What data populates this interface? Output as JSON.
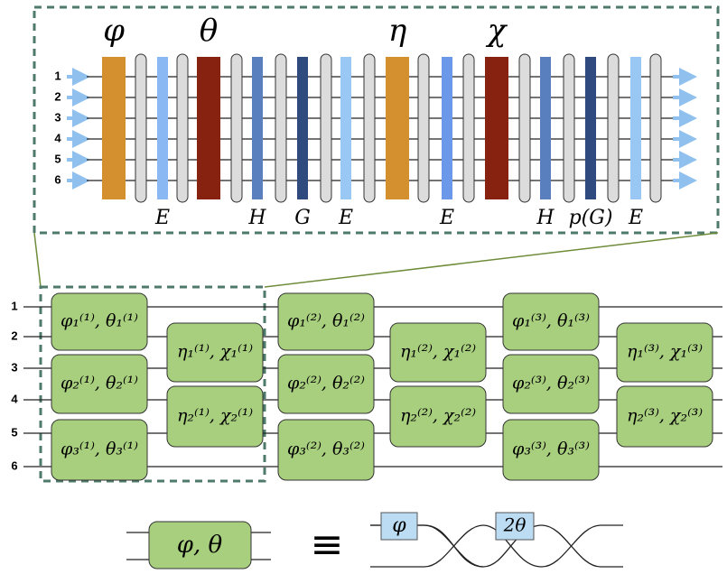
{
  "top_panel": {
    "wire_labels": [
      "1",
      "2",
      "3",
      "4",
      "5",
      "6"
    ],
    "gate_labels": [
      "φ",
      "θ",
      "η",
      "χ"
    ],
    "bottom_labels": [
      "E",
      "H",
      "G",
      "E",
      "E",
      "H",
      "p(G)",
      "E"
    ]
  },
  "circuit": {
    "wire_labels": [
      "1",
      "2",
      "3",
      "4",
      "5",
      "6"
    ],
    "boxes": [
      "φ₁⁽¹⁾, θ₁⁽¹⁾",
      "φ₂⁽¹⁾, θ₂⁽¹⁾",
      "φ₃⁽¹⁾, θ₃⁽¹⁾",
      "η₁⁽¹⁾, χ₁⁽¹⁾",
      "η₂⁽¹⁾, χ₂⁽¹⁾",
      "φ₁⁽²⁾, θ₁⁽²⁾",
      "φ₂⁽²⁾, θ₂⁽²⁾",
      "φ₃⁽²⁾, θ₃⁽²⁾",
      "η₁⁽²⁾, χ₁⁽²⁾",
      "η₂⁽²⁾, χ₂⁽²⁾",
      "φ₁⁽³⁾, θ₁⁽³⁾",
      "φ₂⁽³⁾, θ₂⁽³⁾",
      "φ₃⁽³⁾, θ₃⁽³⁾",
      "η₁⁽³⁾, χ₁⁽³⁾",
      "η₂⁽³⁾, χ₂⁽³⁾"
    ]
  },
  "legend": {
    "box_label": "φ, θ",
    "equiv": "≡",
    "phase_label": "φ",
    "split_label": "2θ"
  }
}
